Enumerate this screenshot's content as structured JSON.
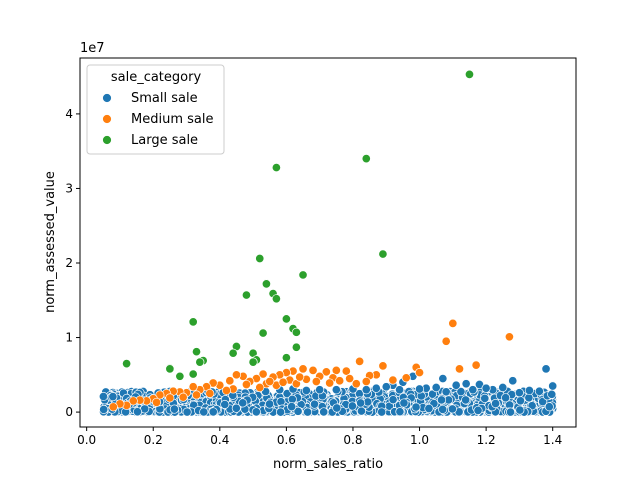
{
  "chart_data": {
    "type": "scatter",
    "title": "",
    "xlabel": "norm_sales_ratio",
    "ylabel": "norm_assessed_value",
    "offset_label": "1e7",
    "xlim": [
      -0.02,
      1.47
    ],
    "ylim": [
      -2000000,
      47500000
    ],
    "x_ticks": [
      0.0,
      0.2,
      0.4,
      0.6,
      0.8,
      1.0,
      1.2,
      1.4
    ],
    "x_tick_labels": [
      "0.0",
      "0.2",
      "0.4",
      "0.6",
      "0.8",
      "1.0",
      "1.2",
      "1.4"
    ],
    "y_ticks": [
      0,
      10000000,
      20000000,
      30000000,
      40000000
    ],
    "y_tick_labels": [
      "0",
      "1",
      "2",
      "3",
      "4"
    ],
    "grid": false,
    "legend": {
      "title": "sale_category",
      "position": "top-left",
      "entries": [
        "Small sale",
        "Medium sale",
        "Large sale"
      ]
    },
    "series": [
      {
        "name": "Small sale",
        "color": "#1f77b4",
        "dense_band": {
          "x_range": [
            0.05,
            1.4
          ],
          "y_range": [
            0,
            2800000
          ],
          "approx_count": 2000
        },
        "points": [
          [
            1.38,
            5800000
          ],
          [
            1.4,
            3500000
          ],
          [
            1.28,
            4200000
          ],
          [
            1.25,
            3300000
          ],
          [
            1.18,
            3700000
          ],
          [
            1.14,
            3800000
          ],
          [
            1.11,
            3600000
          ],
          [
            1.07,
            4500000
          ],
          [
            1.02,
            3200000
          ],
          [
            0.98,
            4800000
          ],
          [
            0.95,
            4000000
          ],
          [
            0.92,
            3600000
          ],
          [
            0.9,
            3400000
          ],
          [
            0.87,
            3200000
          ],
          [
            1.33,
            2900000
          ],
          [
            1.22,
            3000000
          ],
          [
            1.3,
            2600000
          ],
          [
            1.36,
            2800000
          ],
          [
            1.2,
            3200000
          ],
          [
            1.16,
            3000000
          ],
          [
            0.94,
            3000000
          ],
          [
            0.75,
            3000000
          ],
          [
            0.8,
            3100000
          ],
          [
            0.7,
            3000000
          ],
          [
            0.66,
            2900000
          ],
          [
            0.62,
            3100000
          ],
          [
            0.58,
            3000000
          ],
          [
            1.05,
            3300000
          ],
          [
            1.0,
            3100000
          ],
          [
            0.84,
            3000000
          ]
        ]
      },
      {
        "name": "Medium sale",
        "color": "#ff7f0e",
        "points": [
          [
            1.1,
            11900000
          ],
          [
            1.27,
            10100000
          ],
          [
            1.08,
            9500000
          ],
          [
            1.17,
            6300000
          ],
          [
            1.12,
            5800000
          ],
          [
            0.99,
            6000000
          ],
          [
            0.89,
            6200000
          ],
          [
            0.82,
            6800000
          ],
          [
            1.0,
            5300000
          ],
          [
            0.87,
            5000000
          ],
          [
            0.85,
            4900000
          ],
          [
            0.78,
            5500000
          ],
          [
            0.75,
            5600000
          ],
          [
            0.72,
            5400000
          ],
          [
            0.68,
            5600000
          ],
          [
            0.65,
            5800000
          ],
          [
            0.62,
            5500000
          ],
          [
            0.6,
            5300000
          ],
          [
            0.58,
            5000000
          ],
          [
            0.56,
            4700000
          ],
          [
            0.53,
            5100000
          ],
          [
            0.51,
            4500000
          ],
          [
            0.49,
            4100000
          ],
          [
            0.47,
            4800000
          ],
          [
            0.45,
            5000000
          ],
          [
            0.43,
            4200000
          ],
          [
            0.4,
            3600000
          ],
          [
            0.38,
            3900000
          ],
          [
            0.36,
            3400000
          ],
          [
            0.34,
            3000000
          ],
          [
            0.32,
            3400000
          ],
          [
            0.3,
            2600000
          ],
          [
            0.28,
            2700000
          ],
          [
            0.26,
            2800000
          ],
          [
            0.24,
            2500000
          ],
          [
            0.22,
            2300000
          ],
          [
            0.2,
            1800000
          ],
          [
            0.18,
            1500000
          ],
          [
            0.16,
            1600000
          ],
          [
            0.14,
            1500000
          ],
          [
            0.12,
            900000
          ],
          [
            0.1,
            1100000
          ],
          [
            0.08,
            700000
          ],
          [
            0.54,
            3800000
          ],
          [
            0.61,
            4300000
          ],
          [
            0.66,
            4400000
          ],
          [
            0.7,
            4800000
          ],
          [
            0.74,
            4600000
          ],
          [
            0.79,
            4500000
          ],
          [
            0.48,
            3700000
          ],
          [
            0.44,
            3100000
          ],
          [
            0.52,
            3300000
          ],
          [
            0.57,
            3600000
          ],
          [
            0.63,
            3800000
          ],
          [
            0.42,
            2900000
          ],
          [
            0.37,
            2500000
          ],
          [
            0.33,
            2300000
          ],
          [
            0.29,
            2000000
          ],
          [
            0.25,
            1900000
          ],
          [
            0.21,
            1300000
          ],
          [
            0.55,
            4100000
          ],
          [
            0.59,
            4000000
          ],
          [
            0.64,
            4700000
          ],
          [
            0.69,
            4100000
          ],
          [
            0.73,
            3900000
          ],
          [
            0.76,
            4200000
          ],
          [
            0.81,
            3800000
          ],
          [
            0.84,
            4100000
          ],
          [
            0.92,
            4300000
          ],
          [
            0.96,
            4600000
          ]
        ]
      },
      {
        "name": "Large sale",
        "color": "#2ca02c",
        "points": [
          [
            1.15,
            45300000
          ],
          [
            0.84,
            34000000
          ],
          [
            0.57,
            32800000
          ],
          [
            0.89,
            21200000
          ],
          [
            0.52,
            20600000
          ],
          [
            0.54,
            17200000
          ],
          [
            0.48,
            15700000
          ],
          [
            0.56,
            15900000
          ],
          [
            0.57,
            15200000
          ],
          [
            0.65,
            18400000
          ],
          [
            0.6,
            12500000
          ],
          [
            0.32,
            12100000
          ],
          [
            0.62,
            11200000
          ],
          [
            0.63,
            10700000
          ],
          [
            0.53,
            10600000
          ],
          [
            0.45,
            8800000
          ],
          [
            0.44,
            7900000
          ],
          [
            0.5,
            7900000
          ],
          [
            0.33,
            8100000
          ],
          [
            0.63,
            8700000
          ],
          [
            0.51,
            7000000
          ],
          [
            0.6,
            7300000
          ],
          [
            0.35,
            6900000
          ],
          [
            0.34,
            6700000
          ],
          [
            0.5,
            6700000
          ],
          [
            0.12,
            6500000
          ],
          [
            0.25,
            5900000
          ],
          [
            0.25,
            5800000
          ],
          [
            0.32,
            5100000
          ],
          [
            0.28,
            4800000
          ]
        ]
      }
    ]
  }
}
